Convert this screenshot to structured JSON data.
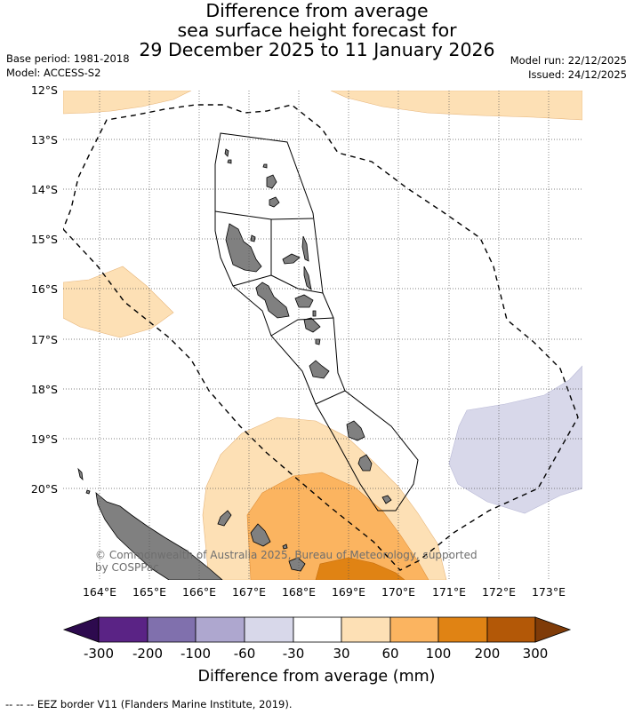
{
  "header": {
    "title_lines": [
      "Difference from average",
      "sea surface height forecast for",
      "29 December 2025 to 11 January 2026"
    ],
    "base_period": "Base period: 1981-2018",
    "model": "Model: ACCESS-S2",
    "model_run": "Model run: 22/12/2025",
    "issued": "Issued: 24/12/2025"
  },
  "map": {
    "lat_labels": [
      "12°S",
      "13°S",
      "14°S",
      "15°S",
      "16°S",
      "17°S",
      "18°S",
      "19°S",
      "20°S"
    ],
    "lon_labels": [
      "164°E",
      "165°E",
      "166°E",
      "167°E",
      "168°E",
      "169°E",
      "170°E",
      "171°E",
      "172°E",
      "173°E"
    ],
    "copyright": [
      "© Commonwealth of Australia 2025, Bureau of Meteorology, supported",
      "by COSPPac"
    ],
    "colors": {
      "ocean": "#ffffff",
      "land": "#808080",
      "grid": "#555555"
    }
  },
  "colorbar": {
    "title": "Difference from average (mm)",
    "ticks": [
      "-300",
      "-200",
      "-100",
      "-60",
      "-30",
      "30",
      "60",
      "100",
      "200",
      "300"
    ],
    "colors": [
      "#2d0a4e",
      "#5a2385",
      "#8070ad",
      "#aea7cf",
      "#d8d8ea",
      "#ffffff",
      "#fde0b5",
      "#fbb460",
      "#e08314",
      "#b35807",
      "#7f3b08"
    ]
  },
  "footer": {
    "legend": "--  --  -- EEZ border V11 (Flanders Marine Institute, 2019)."
  }
}
